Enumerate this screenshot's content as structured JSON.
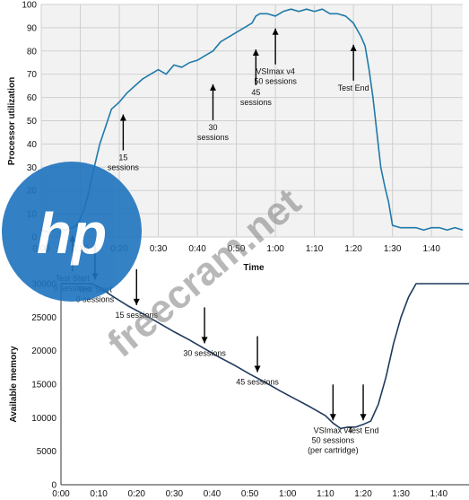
{
  "chart_data": [
    {
      "type": "line",
      "ylabel": "Processor utilization",
      "xlabel": "Time",
      "x_ticks": [
        "0:00",
        "0:10",
        "0:20",
        "0:30",
        "0:40",
        "0:50",
        "1:00",
        "1:10",
        "1:20",
        "1:30",
        "1:40"
      ],
      "y_ticks": [
        0,
        10,
        20,
        30,
        40,
        50,
        60,
        70,
        80,
        90,
        100
      ],
      "xlim": [
        0,
        108
      ],
      "ylim": [
        0,
        100
      ],
      "grid": true,
      "line_color": "#1f7aa8",
      "series": [
        {
          "x": [
            0,
            2,
            4,
            6,
            8,
            9,
            10,
            11,
            12,
            13,
            14,
            15,
            16,
            17,
            18,
            20,
            22,
            24,
            26,
            28,
            30,
            32,
            34,
            36,
            38,
            40,
            42,
            44,
            46,
            48,
            50,
            52,
            54,
            55,
            56,
            58,
            60,
            62,
            64,
            66,
            68,
            70,
            72,
            74,
            76,
            78,
            80,
            82,
            83,
            84,
            85,
            86,
            87,
            88,
            89,
            90,
            92,
            94,
            96,
            98,
            100,
            102,
            104,
            106,
            108
          ],
          "values": [
            3,
            2,
            4,
            3,
            4,
            5,
            8,
            12,
            18,
            26,
            33,
            40,
            45,
            50,
            55,
            58,
            62,
            65,
            68,
            70,
            72,
            70,
            74,
            73,
            75,
            76,
            78,
            80,
            84,
            86,
            88,
            90,
            92,
            95,
            96,
            96,
            95,
            97,
            98,
            97,
            98,
            97,
            98,
            96,
            96,
            95,
            92,
            86,
            82,
            72,
            60,
            45,
            30,
            22,
            15,
            5,
            4,
            4,
            4,
            3,
            4,
            4,
            3,
            4,
            3
          ]
        }
      ],
      "annotations": [
        {
          "label": "Test Start",
          "sublabel": "0 sessions",
          "x": 8,
          "y": 3
        },
        {
          "label": "15",
          "sublabel": "sessions",
          "x": 21,
          "y": 55
        },
        {
          "label": "30",
          "sublabel": "sessions",
          "x": 44,
          "y": 68
        },
        {
          "label": "45",
          "sublabel": "sessions",
          "x": 55,
          "y": 83
        },
        {
          "label": "VSImax v4",
          "sublabel": "50 sessions",
          "x": 60,
          "y": 92
        },
        {
          "label": "Test End",
          "sublabel": "",
          "x": 80,
          "y": 85
        }
      ]
    },
    {
      "type": "line",
      "ylabel": "Available memory",
      "xlabel": "",
      "x_ticks": [
        "0:00",
        "0:10",
        "0:20",
        "0:30",
        "0:40",
        "0:50",
        "1:00",
        "1:10",
        "1:20",
        "1:30",
        "1:40"
      ],
      "y_ticks": [
        0,
        5000,
        10000,
        15000,
        20000,
        25000,
        30000
      ],
      "xlim": [
        0,
        108
      ],
      "ylim": [
        0,
        30000
      ],
      "grid": false,
      "line_color": "#1f3a5c",
      "series": [
        {
          "x": [
            0,
            4,
            8,
            10,
            14,
            18,
            22,
            26,
            30,
            34,
            38,
            42,
            46,
            50,
            54,
            58,
            62,
            66,
            70,
            72,
            74,
            76,
            78,
            80,
            82,
            84,
            86,
            88,
            90,
            92,
            94,
            100,
            108
          ],
          "values": [
            30000,
            30000,
            30000,
            29500,
            28000,
            26600,
            25400,
            24100,
            22800,
            21600,
            20300,
            19000,
            17800,
            16500,
            15300,
            14000,
            12800,
            11600,
            10300,
            9200,
            8400,
            8600,
            8600,
            9000,
            9500,
            12000,
            16000,
            21000,
            25000,
            28000,
            30000,
            30000,
            30000
          ]
        }
      ],
      "annotations": [
        {
          "label": "Test Start",
          "sublabel": "0 sessions",
          "x": 9,
          "y": 29800
        },
        {
          "label": "15 sessions",
          "sublabel": "",
          "x": 20,
          "y": 26000
        },
        {
          "label": "30 sessions",
          "sublabel": "",
          "x": 38,
          "y": 20300
        },
        {
          "label": "45 sessions",
          "sublabel": "",
          "x": 52,
          "y": 16000
        },
        {
          "label": "VSImax v4",
          "sublabel": "50 sessions",
          "sublabel2": "(per cartridge)",
          "x": 72,
          "y": 8800
        },
        {
          "label": "Test End",
          "sublabel": "",
          "x": 80,
          "y": 8800
        }
      ]
    }
  ],
  "watermark": {
    "logo_text": "hp",
    "logo_color": "#1e73be",
    "text": "freecram.net"
  }
}
